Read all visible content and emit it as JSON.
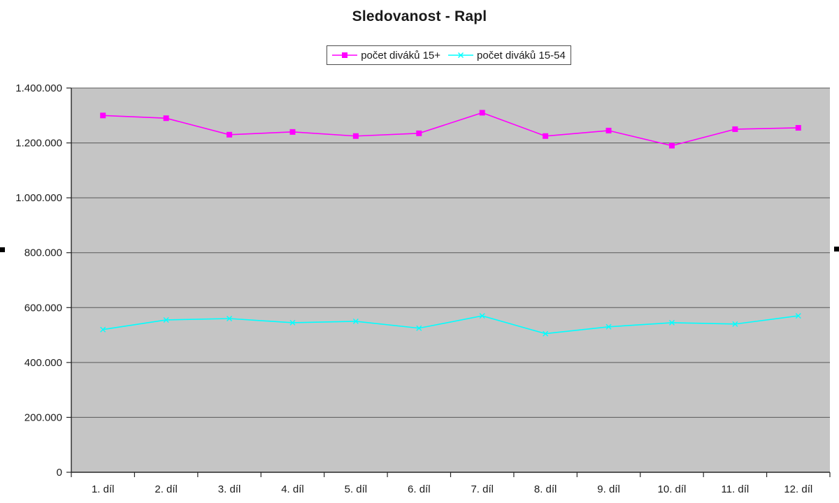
{
  "ui": {
    "selection_handles": [
      "left-middle-handle",
      "right-middle-handle"
    ]
  },
  "chart_data": {
    "type": "line",
    "title": "Sledovanost - Rapl",
    "categories": [
      "1. díl",
      "2. díl",
      "3. díl",
      "4. díl",
      "5. díl",
      "6. díl",
      "7. díl",
      "8. díl",
      "9. díl",
      "10. díl",
      "11. díl",
      "12. díl"
    ],
    "series": [
      {
        "name": "počet diváků 15+",
        "color": "#FF00FF",
        "marker": "square",
        "values": [
          1300000,
          1290000,
          1230000,
          1240000,
          1225000,
          1235000,
          1310000,
          1225000,
          1245000,
          1190000,
          1250000,
          1255000
        ]
      },
      {
        "name": "počet diváků 15-54",
        "color": "#00FFFF",
        "marker": "x",
        "values": [
          520000,
          555000,
          560000,
          545000,
          550000,
          525000,
          570000,
          505000,
          530000,
          545000,
          540000,
          570000
        ]
      }
    ],
    "ylim": [
      0,
      1400000
    ],
    "ytick_step": 200000,
    "ytick_labels": [
      "0",
      "200.000",
      "400.000",
      "600.000",
      "800.000",
      "1.000.000",
      "1.200.000",
      "1.400.000"
    ],
    "xlabel": "",
    "ylabel": "",
    "grid": "horizontal",
    "legend_position": "top-center",
    "plot_bg_color": "#C5C5C5",
    "gridline_color": "#595959",
    "axis_color": "#262626",
    "text_color": "#1a1a1a"
  }
}
